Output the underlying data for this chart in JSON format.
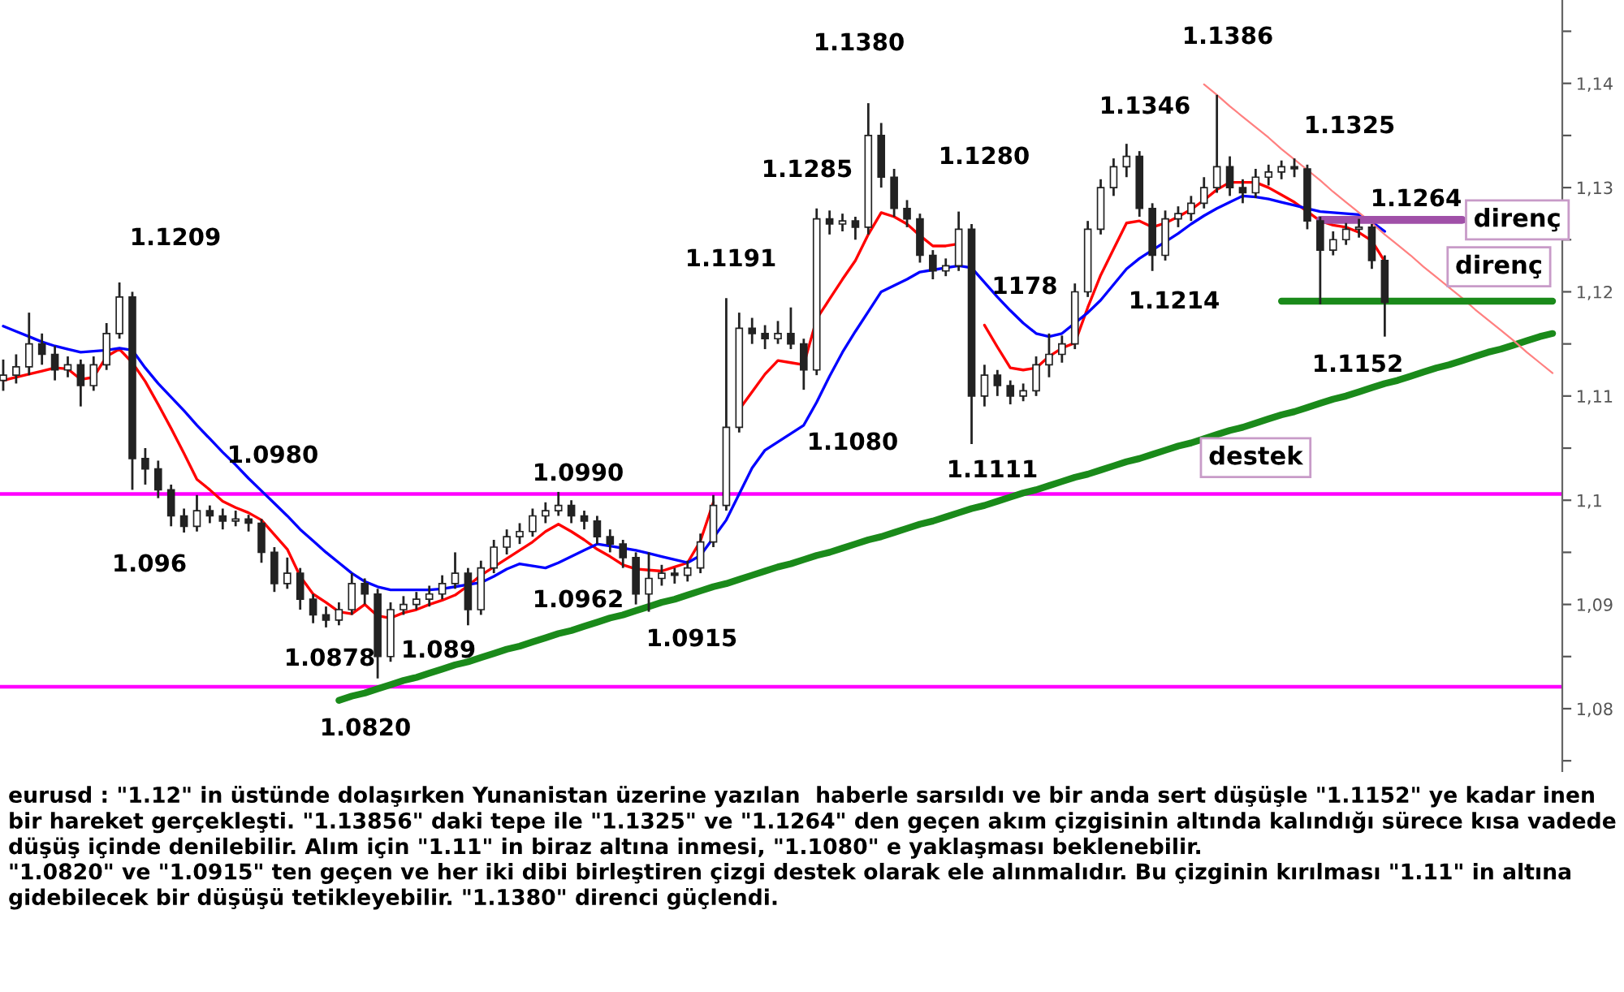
{
  "chart_data": {
    "type": "candlestick",
    "categories": [
      null,
      null,
      null,
      null,
      null,
      null,
      null,
      null,
      null,
      null,
      null,
      null,
      null,
      null,
      null,
      null,
      null,
      null,
      null,
      null,
      null,
      null,
      null,
      null,
      null,
      null,
      null,
      null,
      null,
      null,
      null,
      null,
      null,
      null,
      null,
      null,
      null,
      null,
      null,
      null,
      null,
      null,
      null,
      null,
      null,
      null,
      null,
      null,
      null,
      null,
      null,
      null,
      null,
      null,
      null,
      null,
      null,
      null,
      null,
      null,
      null,
      null,
      null,
      null,
      null,
      null,
      null,
      null,
      null,
      null,
      null,
      null,
      null,
      null,
      null,
      null,
      null,
      null,
      null,
      null,
      null,
      null,
      null,
      null,
      null,
      null,
      null,
      null,
      null,
      null,
      null,
      null,
      null,
      null,
      null,
      null,
      null,
      null,
      null,
      null,
      null,
      null,
      null,
      null,
      null,
      null,
      null,
      null,
      null,
      null,
      null,
      null,
      null,
      null,
      null,
      null,
      null,
      null,
      null,
      null,
      null
    ],
    "ohlc": [
      [
        1.1115,
        1.1135,
        1.1105,
        1.112
      ],
      [
        1.112,
        1.114,
        1.1112,
        1.1128
      ],
      [
        1.1128,
        1.118,
        1.112,
        1.115
      ],
      [
        1.115,
        1.116,
        1.113,
        1.114
      ],
      [
        1.114,
        1.1148,
        1.1115,
        1.1125
      ],
      [
        1.1125,
        1.1138,
        1.1118,
        1.113
      ],
      [
        1.113,
        1.1135,
        1.109,
        1.111
      ],
      [
        1.111,
        1.1138,
        1.1105,
        1.113
      ],
      [
        1.113,
        1.117,
        1.1125,
        1.116
      ],
      [
        1.116,
        1.1209,
        1.1155,
        1.1195
      ],
      [
        1.1195,
        1.12,
        1.101,
        1.104
      ],
      [
        1.104,
        1.105,
        1.1015,
        1.103
      ],
      [
        1.103,
        1.1038,
        1.1002,
        1.101
      ],
      [
        1.101,
        1.1015,
        1.0975,
        1.0985
      ],
      [
        1.0985,
        1.0992,
        1.0969,
        1.0975
      ],
      [
        1.0975,
        1.1005,
        1.097,
        1.099
      ],
      [
        1.099,
        1.0995,
        1.0978,
        1.0985
      ],
      [
        1.0985,
        1.0992,
        1.0972,
        1.098
      ],
      [
        1.098,
        1.099,
        1.0975,
        1.0982
      ],
      [
        1.0982,
        1.0986,
        1.097,
        1.0978
      ],
      [
        1.0978,
        1.0982,
        1.094,
        1.095
      ],
      [
        1.095,
        1.0955,
        1.0912,
        1.092
      ],
      [
        1.092,
        1.0945,
        1.0915,
        1.093
      ],
      [
        1.093,
        1.0935,
        1.0895,
        1.0905
      ],
      [
        1.0905,
        1.091,
        1.0882,
        1.089
      ],
      [
        1.089,
        1.0898,
        1.0878,
        1.0885
      ],
      [
        1.0885,
        1.0902,
        1.088,
        1.0895
      ],
      [
        1.0895,
        1.093,
        1.089,
        1.092
      ],
      [
        1.092,
        1.0925,
        1.09,
        1.091
      ],
      [
        1.091,
        1.0915,
        1.0829,
        1.085
      ],
      [
        1.085,
        1.0902,
        1.0845,
        1.0895
      ],
      [
        1.0895,
        1.0908,
        1.089,
        1.09
      ],
      [
        1.09,
        1.0912,
        1.0895,
        1.0905
      ],
      [
        1.0905,
        1.0918,
        1.0898,
        1.091
      ],
      [
        1.091,
        1.0928,
        1.0905,
        1.092
      ],
      [
        1.092,
        1.095,
        1.0915,
        1.093
      ],
      [
        1.093,
        1.0935,
        1.088,
        1.0895
      ],
      [
        1.0895,
        1.0942,
        1.089,
        1.0935
      ],
      [
        1.0935,
        1.0962,
        1.093,
        1.0955
      ],
      [
        1.0955,
        1.0972,
        1.0948,
        1.0965
      ],
      [
        1.0965,
        1.0978,
        1.0958,
        1.097
      ],
      [
        1.097,
        1.0992,
        1.0965,
        1.0985
      ],
      [
        1.0985,
        1.0998,
        1.0978,
        1.099
      ],
      [
        1.099,
        1.1008,
        1.0985,
        1.0995
      ],
      [
        1.0995,
        1.1,
        1.0978,
        1.0985
      ],
      [
        1.0985,
        1.099,
        1.0972,
        1.098
      ],
      [
        1.098,
        1.0985,
        1.0958,
        1.0965
      ],
      [
        1.0965,
        1.0972,
        1.095,
        1.0958
      ],
      [
        1.0958,
        1.0962,
        1.0935,
        1.0945
      ],
      [
        1.0945,
        1.095,
        1.09,
        1.091
      ],
      [
        1.091,
        1.095,
        1.0893,
        1.0925
      ],
      [
        1.0925,
        1.0938,
        1.0918,
        1.093
      ],
      [
        1.093,
        1.0935,
        1.092,
        1.0928
      ],
      [
        1.0928,
        1.0942,
        1.0922,
        1.0935
      ],
      [
        1.0935,
        1.0968,
        1.093,
        1.096
      ],
      [
        1.096,
        1.1005,
        1.0955,
        1.0995
      ],
      [
        1.0995,
        1.1194,
        1.099,
        1.107
      ],
      [
        1.107,
        1.118,
        1.1065,
        1.1165
      ],
      [
        1.1165,
        1.1175,
        1.115,
        1.116
      ],
      [
        1.116,
        1.1168,
        1.1145,
        1.1155
      ],
      [
        1.1155,
        1.1172,
        1.115,
        1.116
      ],
      [
        1.116,
        1.1185,
        1.1145,
        1.115
      ],
      [
        1.115,
        1.1155,
        1.1106,
        1.1125
      ],
      [
        1.1125,
        1.128,
        1.112,
        1.127
      ],
      [
        1.127,
        1.1278,
        1.1255,
        1.1265
      ],
      [
        1.1265,
        1.1275,
        1.1258,
        1.1268
      ],
      [
        1.1268,
        1.1272,
        1.125,
        1.1262
      ],
      [
        1.1262,
        1.1381,
        1.1255,
        1.135
      ],
      [
        1.135,
        1.1362,
        1.13,
        1.131
      ],
      [
        1.131,
        1.1318,
        1.1272,
        1.128
      ],
      [
        1.128,
        1.1288,
        1.1262,
        1.127
      ],
      [
        1.127,
        1.1275,
        1.1228,
        1.1235
      ],
      [
        1.1235,
        1.124,
        1.1212,
        1.122
      ],
      [
        1.122,
        1.1232,
        1.1215,
        1.1225
      ],
      [
        1.1225,
        1.1277,
        1.122,
        1.126
      ],
      [
        1.126,
        1.1265,
        1.1054,
        1.11
      ],
      [
        1.11,
        1.113,
        1.109,
        1.112
      ],
      [
        1.112,
        1.1125,
        1.11,
        1.111
      ],
      [
        1.111,
        1.1115,
        1.1092,
        1.11
      ],
      [
        1.11,
        1.1112,
        1.1095,
        1.1105
      ],
      [
        1.1105,
        1.1138,
        1.11,
        1.113
      ],
      [
        1.113,
        1.116,
        1.1118,
        1.114
      ],
      [
        1.114,
        1.1158,
        1.1132,
        1.115
      ],
      [
        1.115,
        1.1208,
        1.1145,
        1.12
      ],
      [
        1.12,
        1.1268,
        1.1195,
        1.126
      ],
      [
        1.126,
        1.1308,
        1.1255,
        1.13
      ],
      [
        1.13,
        1.1328,
        1.1292,
        1.132
      ],
      [
        1.132,
        1.1342,
        1.131,
        1.133
      ],
      [
        1.133,
        1.1335,
        1.1272,
        1.128
      ],
      [
        1.128,
        1.1285,
        1.122,
        1.1235
      ],
      [
        1.1235,
        1.1278,
        1.123,
        1.127
      ],
      [
        1.127,
        1.1282,
        1.1262,
        1.1275
      ],
      [
        1.1275,
        1.1292,
        1.1268,
        1.1285
      ],
      [
        1.1285,
        1.131,
        1.128,
        1.13
      ],
      [
        1.13,
        1.1389,
        1.1295,
        1.132
      ],
      [
        1.132,
        1.133,
        1.1292,
        1.13
      ],
      [
        1.13,
        1.1308,
        1.1285,
        1.1295
      ],
      [
        1.1295,
        1.1318,
        1.129,
        1.131
      ],
      [
        1.131,
        1.1322,
        1.1302,
        1.1315
      ],
      [
        1.1315,
        1.1326,
        1.1308,
        1.132
      ],
      [
        1.132,
        1.1328,
        1.131,
        1.1318
      ],
      [
        1.1318,
        1.1322,
        1.126,
        1.1268
      ],
      [
        1.1268,
        1.1272,
        1.1188,
        1.124
      ],
      [
        1.124,
        1.1258,
        1.1235,
        1.125
      ],
      [
        1.125,
        1.1266,
        1.1245,
        1.126
      ],
      [
        1.126,
        1.127,
        1.1252,
        1.1262
      ],
      [
        1.1262,
        1.1265,
        1.1222,
        1.123
      ],
      [
        1.123,
        1.1235,
        1.1157,
        1.119
      ],
      null,
      null,
      null,
      null,
      null,
      null,
      null,
      null,
      null,
      null,
      null,
      null,
      null
    ],
    "series": [
      {
        "type": "line",
        "color": "#ff0000",
        "values": [
          1.1115,
          1.1118,
          1.1121,
          1.1124,
          1.1127,
          1.1126,
          1.1116,
          1.1118,
          1.1138,
          1.1145,
          1.1132,
          1.1114,
          1.1092,
          1.1069,
          1.1045,
          1.102,
          1.101,
          1.0999,
          1.0993,
          1.0988,
          1.0981,
          1.0967,
          1.0953,
          1.0927,
          1.091,
          1.0902,
          1.0893,
          1.0891,
          1.09,
          1.0889,
          1.0887,
          1.0892,
          1.0895,
          1.09,
          1.0904,
          1.0909,
          1.0918,
          1.0928,
          1.0936,
          1.0944,
          1.0952,
          1.096,
          1.097,
          1.0977,
          1.097,
          1.0962,
          1.0953,
          1.0946,
          1.0938,
          1.0934,
          1.0933,
          1.0932,
          1.0936,
          1.094,
          1.0961,
          1.0998,
          null,
          1.1087,
          1.1104,
          1.1121,
          1.1134,
          1.1132,
          1.113,
          1.1174,
          1.1193,
          1.1212,
          1.123,
          1.1255,
          1.1276,
          1.1272,
          1.1265,
          1.1254,
          1.1244,
          1.1244,
          1.1246,
          null,
          1.1168,
          1.1147,
          1.1127,
          1.1125,
          1.1127,
          1.1138,
          1.1146,
          1.1151,
          1.1185,
          1.1216,
          1.1241,
          1.1266,
          1.1268,
          1.1262,
          1.1266,
          1.1272,
          1.1279,
          1.1288,
          1.1298,
          1.1305,
          1.1305,
          1.1305,
          1.13,
          1.1293,
          1.1286,
          1.1277,
          1.1268,
          1.1264,
          1.1262,
          1.1257,
          1.1249,
          1.1229,
          null,
          null,
          null,
          null,
          null,
          null,
          null,
          null,
          null,
          null,
          null,
          null,
          null
        ]
      },
      {
        "type": "line",
        "color": "#0000ff",
        "values": [
          1.1167,
          1.1162,
          1.1157,
          1.1152,
          1.1148,
          1.1145,
          1.1142,
          1.1143,
          1.1144,
          1.1146,
          1.1144,
          1.1127,
          1.1112,
          1.1099,
          1.1086,
          1.1072,
          1.1059,
          1.1046,
          1.1034,
          1.1021,
          1.1009,
          1.0997,
          1.0985,
          1.0972,
          1.0961,
          1.095,
          1.094,
          1.093,
          1.0922,
          1.0917,
          1.0914,
          1.0914,
          1.0914,
          1.0914,
          1.0915,
          1.0917,
          1.0919,
          1.0921,
          1.0927,
          1.0934,
          1.0939,
          1.0937,
          1.0935,
          1.094,
          1.0946,
          1.0952,
          1.0958,
          1.0956,
          1.0954,
          1.0952,
          1.0949,
          1.0946,
          1.0943,
          1.094,
          1.0947,
          1.0964,
          1.0981,
          1.1006,
          1.1031,
          1.1048,
          1.1056,
          1.1064,
          1.1072,
          1.1094,
          1.1119,
          1.1142,
          1.1162,
          1.1181,
          1.12,
          1.1206,
          1.1212,
          1.1219,
          1.1221,
          1.1223,
          1.1225,
          1.1223,
          1.1209,
          1.1195,
          1.1182,
          1.117,
          1.116,
          1.1157,
          1.116,
          1.117,
          1.118,
          1.1192,
          1.1207,
          1.1222,
          1.1232,
          1.124,
          1.1248,
          1.1256,
          1.1265,
          1.1273,
          1.128,
          1.1286,
          1.1292,
          1.1291,
          1.1289,
          1.1286,
          1.1283,
          1.128,
          1.1277,
          1.1276,
          1.1275,
          1.1274,
          1.1267,
          1.1258,
          null,
          null,
          null,
          null,
          null,
          null,
          null,
          null,
          null,
          null,
          null,
          null,
          null
        ]
      },
      {
        "type": "line",
        "name": "destek",
        "color": "#1a8a1a",
        "values": [
          null,
          null,
          null,
          null,
          null,
          null,
          null,
          null,
          null,
          null,
          null,
          null,
          null,
          null,
          null,
          null,
          null,
          null,
          null,
          null,
          null,
          null,
          null,
          null,
          null,
          null,
          1.0808,
          1.0812,
          1.0815,
          1.0819,
          1.0823,
          1.0827,
          1.083,
          1.0834,
          1.0838,
          1.0842,
          1.0845,
          1.0849,
          1.0853,
          1.0857,
          1.086,
          1.0864,
          1.0868,
          1.0872,
          1.0875,
          1.0879,
          1.0883,
          1.0887,
          1.089,
          1.0894,
          1.0898,
          1.0902,
          1.0905,
          1.0909,
          1.0913,
          1.0917,
          1.092,
          1.0924,
          1.0928,
          1.0932,
          1.0936,
          1.0939,
          1.0943,
          1.0947,
          1.095,
          1.0954,
          1.0958,
          1.0962,
          1.0965,
          1.0969,
          1.0973,
          1.0977,
          1.098,
          1.0984,
          1.0988,
          1.0992,
          1.0995,
          1.0999,
          1.1003,
          1.1007,
          1.101,
          1.1014,
          1.1018,
          1.1022,
          1.1025,
          1.1029,
          1.1033,
          1.1037,
          1.104,
          1.1044,
          1.1048,
          1.1052,
          1.1055,
          1.1059,
          1.1063,
          1.1067,
          1.107,
          1.1074,
          1.1078,
          1.1082,
          1.1085,
          1.1089,
          1.1093,
          1.1097,
          1.11,
          1.1104,
          1.1108,
          1.1112,
          1.1115,
          1.1119,
          1.1123,
          1.1127,
          1.113,
          1.1134,
          1.1138,
          1.1142,
          1.1145,
          1.1149,
          1.1153,
          1.1157,
          1.116
        ]
      },
      {
        "type": "line",
        "name": "direnç",
        "color": "#ff8080",
        "values": [
          null,
          null,
          null,
          null,
          null,
          null,
          null,
          null,
          null,
          null,
          null,
          null,
          null,
          null,
          null,
          null,
          null,
          null,
          null,
          null,
          null,
          null,
          null,
          null,
          null,
          null,
          null,
          null,
          null,
          null,
          null,
          null,
          null,
          null,
          null,
          null,
          null,
          null,
          null,
          null,
          null,
          null,
          null,
          null,
          null,
          null,
          null,
          null,
          null,
          null,
          null,
          null,
          null,
          null,
          null,
          null,
          null,
          null,
          null,
          null,
          null,
          null,
          null,
          null,
          null,
          null,
          null,
          null,
          null,
          null,
          null,
          null,
          null,
          null,
          null,
          null,
          null,
          null,
          null,
          null,
          null,
          null,
          null,
          null,
          null,
          null,
          null,
          null,
          null,
          null,
          null,
          null,
          null,
          1.1399,
          1.1389,
          1.1378,
          1.1368,
          1.1358,
          1.1348,
          1.1337,
          1.1327,
          1.1317,
          1.1307,
          1.1296,
          1.1286,
          1.1276,
          1.1266,
          1.1255,
          1.1245,
          1.1235,
          1.1224,
          1.1214,
          1.1204,
          1.1194,
          1.1183,
          1.1173,
          1.1163,
          1.1153,
          1.1142,
          1.1132,
          1.1122
        ]
      },
      {
        "type": "line",
        "name": "direnç",
        "color": "#a050a8",
        "values": [
          null,
          null,
          null,
          null,
          null,
          null,
          null,
          null,
          null,
          null,
          null,
          null,
          null,
          null,
          null,
          null,
          null,
          null,
          null,
          null,
          null,
          null,
          null,
          null,
          null,
          null,
          null,
          null,
          null,
          null,
          null,
          null,
          null,
          null,
          null,
          null,
          null,
          null,
          null,
          null,
          null,
          null,
          null,
          null,
          null,
          null,
          null,
          null,
          null,
          null,
          null,
          null,
          null,
          null,
          null,
          null,
          null,
          null,
          null,
          null,
          null,
          null,
          null,
          null,
          null,
          null,
          null,
          null,
          null,
          null,
          null,
          null,
          null,
          null,
          null,
          null,
          null,
          null,
          null,
          null,
          null,
          null,
          null,
          null,
          null,
          null,
          null,
          null,
          null,
          null,
          null,
          null,
          null,
          null,
          null,
          null,
          null,
          null,
          null,
          null,
          null,
          null,
          1.1269,
          1.1269,
          1.1269,
          1.1269,
          1.1269,
          1.1269,
          1.1269,
          1.1269,
          1.1269,
          1.1269,
          1.1269,
          1.1269,
          null,
          null,
          null,
          null,
          null,
          null,
          null
        ]
      },
      {
        "type": "line",
        "color": "#1a8a1a",
        "values": [
          null,
          null,
          null,
          null,
          null,
          null,
          null,
          null,
          null,
          null,
          null,
          null,
          null,
          null,
          null,
          null,
          null,
          null,
          null,
          null,
          null,
          null,
          null,
          null,
          null,
          null,
          null,
          null,
          null,
          null,
          null,
          null,
          null,
          null,
          null,
          null,
          null,
          null,
          null,
          null,
          null,
          null,
          null,
          null,
          null,
          null,
          null,
          null,
          null,
          null,
          null,
          null,
          null,
          null,
          null,
          null,
          null,
          null,
          null,
          null,
          null,
          null,
          null,
          null,
          null,
          null,
          null,
          null,
          null,
          null,
          null,
          null,
          null,
          null,
          null,
          null,
          null,
          null,
          null,
          null,
          null,
          null,
          null,
          null,
          null,
          null,
          null,
          null,
          null,
          null,
          null,
          null,
          null,
          null,
          null,
          null,
          null,
          null,
          null,
          1.1191,
          1.1191,
          1.1191,
          1.1191,
          1.1191,
          1.1191,
          1.1191,
          1.1191,
          1.1191,
          1.1191,
          1.1191,
          1.1191,
          1.1191,
          1.1191,
          1.1191,
          1.1191,
          1.1191,
          1.1191,
          1.1191,
          1.1191,
          1.1191,
          1.1191
        ]
      }
    ],
    "ref_lines": [
      {
        "axis": "y",
        "value": 1.1006,
        "color": "#ff00ff"
      },
      {
        "axis": "y",
        "value": 1.0821,
        "color": "#ff00ff"
      }
    ],
    "ylim": [
      1.074,
      1.148
    ],
    "yticks": [
      {
        "value": 1.075,
        "label": null
      },
      {
        "value": 1.08,
        "label": "1,08"
      },
      {
        "value": 1.085,
        "label": null
      },
      {
        "value": 1.09,
        "label": "1,09"
      },
      {
        "value": 1.095,
        "label": null
      },
      {
        "value": 1.1,
        "label": "1,1"
      },
      {
        "value": 1.105,
        "label": null
      },
      {
        "value": 1.11,
        "label": "1,11"
      },
      {
        "value": 1.115,
        "label": null
      },
      {
        "value": 1.12,
        "label": "1,12"
      },
      {
        "value": 1.125,
        "label": null
      },
      {
        "value": 1.13,
        "label": "1,13"
      },
      {
        "value": 1.135,
        "label": null
      },
      {
        "value": 1.14,
        "label": "1,14"
      },
      {
        "value": 1.145,
        "label": null
      }
    ],
    "tick_labels": "y",
    "grid": false,
    "annotations": [
      "1.1209",
      "1.0980",
      "1.096",
      "1.0878",
      "1.0820",
      "1.089",
      "1.0990",
      "1.0962",
      "1.0915",
      "1.1191",
      "1.1285",
      "1.1080",
      "1.1380",
      "1.1280",
      "1.1111",
      "1178",
      "1.1346",
      "1.1214",
      "1.1386",
      "1.1325",
      "1.1264",
      "1.1152",
      "eurusd : \"1.12\" in üstünde dolaşırken Yunanistan üzerine yazılan  haberle sarsıldı ve bir anda sert düşüşle \"1.1152\" ye kadar inen bir hareket gerçekleşti. \"1.13856\" daki tepe ile \"1.1325\" ve \"1.1264\" den geçen akım çizgisinin altında kalındığı sürece kısa vadede düşüş içinde denilebilir. Alım için \"1.11\" in biraz altına inmesi, \"1.1080\" e yaklaşması beklenebilir.",
      "\"1.0820\" ve \"1.0915\" ten geçen ve her iki dibi birleştiren çizgi destek olarak ele alınmalıdır. Bu çizginin kırılması \"1.11\" in altına gidebilecek bir düşüşü tetikleyebilir. \"1.1380\" direnci güçlendi."
    ]
  }
}
